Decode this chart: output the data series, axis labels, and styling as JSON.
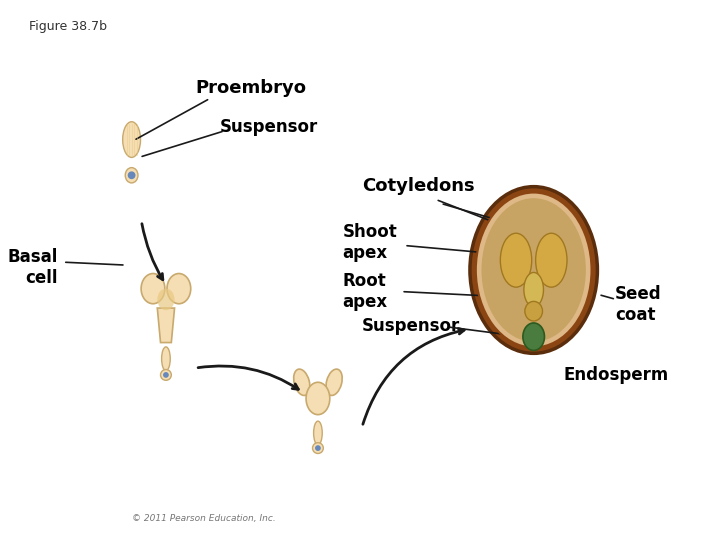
{
  "figure_label": "Figure 38.7b",
  "copyright": "© 2011 Pearson Education, Inc.",
  "background_color": "#ffffff",
  "labels": {
    "proembryo": "Proembryo",
    "suspensor_top": "Suspensor",
    "basal_cell": "Basal\ncell",
    "cotyledons": "Cotyledons",
    "shoot_apex": "Shoot\napex",
    "root_apex": "Root\napex",
    "suspensor_bottom": "Suspensor",
    "seed_coat": "Seed\ncoat",
    "endosperm": "Endosperm"
  },
  "colors": {
    "embryo_fill": "#f5deb3",
    "embryo_edge": "#c8a96e",
    "embryo_detail": "#e8c882",
    "seed_coat_fill": "#8B4513",
    "seed_inner_fill": "#deb887",
    "endosperm_fill": "#c8a464",
    "cotyledon_fill": "#d4a843",
    "suspensor_green": "#4a7c3f",
    "arrow_color": "#1a1a1a",
    "text_color": "#000000",
    "basal_cell_blue": "#6688bb"
  }
}
